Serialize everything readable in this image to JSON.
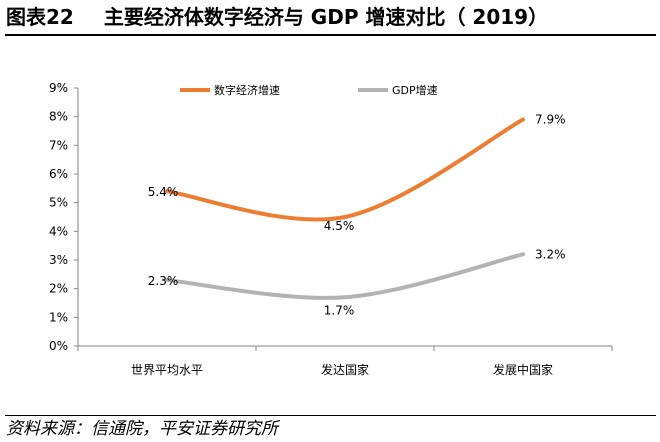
{
  "figure": {
    "number": "图表22",
    "title": "主要经济体数字经济与 GDP 增速对比（ 2019）",
    "source": "资料来源：信通院，平安证券研究所"
  },
  "chart_data": {
    "type": "line",
    "categories": [
      "世界平均水平",
      "发达国家",
      "发展中国家"
    ],
    "series": [
      {
        "name": "数字经济增速",
        "values": [
          5.4,
          4.5,
          7.9
        ],
        "labels": [
          "5.4%",
          "4.5%",
          "7.9%"
        ],
        "color": "#ED7D31"
      },
      {
        "name": "GDP增速",
        "values": [
          2.3,
          1.7,
          3.2
        ],
        "labels": [
          "2.3%",
          "1.7%",
          "3.2%"
        ],
        "color": "#B3B3B3"
      }
    ],
    "ylim": [
      0,
      9
    ],
    "yticks": [
      "0%",
      "1%",
      "2%",
      "3%",
      "4%",
      "5%",
      "6%",
      "7%",
      "8%",
      "9%"
    ],
    "grid": false,
    "legend": "top",
    "smooth": true
  }
}
